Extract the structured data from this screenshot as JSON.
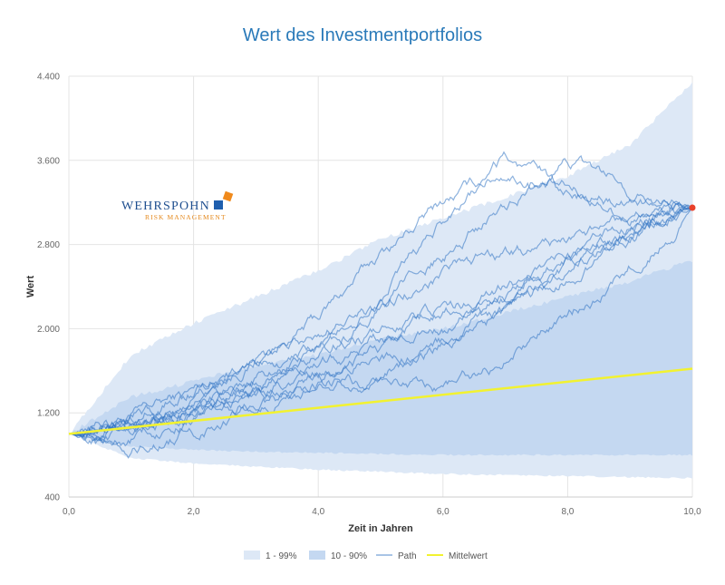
{
  "chart_data": {
    "type": "area",
    "title": "Wert des Investmentportfolios",
    "xlabel": "Zeit in Jahren",
    "ylabel": "Wert",
    "xlim": [
      0,
      10
    ],
    "ylim": [
      400,
      4400
    ],
    "x_ticks": [
      0,
      2,
      4,
      6,
      8,
      10
    ],
    "x_tick_labels": [
      "0,0",
      "2,0",
      "4,0",
      "6,0",
      "8,0",
      "10,0"
    ],
    "y_ticks": [
      400,
      1200,
      2000,
      2800,
      3600,
      4400
    ],
    "y_tick_labels": [
      "400",
      "1.200",
      "2.000",
      "2.800",
      "3.600",
      "4.400"
    ],
    "grid": true,
    "legend_position": "bottom-center",
    "series": [
      {
        "name": "1 - 99%",
        "kind": "band",
        "color": "#dde8f6",
        "x": [
          0,
          1,
          2,
          3,
          4,
          5,
          6,
          7,
          8,
          9,
          10
        ],
        "lower": [
          1000,
          770,
          720,
          690,
          660,
          640,
          620,
          610,
          600,
          590,
          580
        ],
        "upper": [
          1000,
          1750,
          2050,
          2300,
          2550,
          2850,
          3050,
          3250,
          3450,
          3750,
          4350
        ]
      },
      {
        "name": "10 - 90%",
        "kind": "band",
        "color": "#c4d8f1",
        "x": [
          0,
          1,
          2,
          3,
          4,
          5,
          6,
          7,
          8,
          9,
          10
        ],
        "lower": [
          1000,
          880,
          850,
          830,
          820,
          810,
          800,
          800,
          800,
          800,
          800
        ],
        "upper": [
          1000,
          1350,
          1500,
          1650,
          1750,
          1900,
          2000,
          2150,
          2300,
          2450,
          2650
        ]
      },
      {
        "name": "Path",
        "kind": "paths",
        "color": "#2f72c2",
        "x": [
          0,
          1,
          2,
          3,
          4,
          5,
          6,
          7,
          8,
          9,
          10
        ],
        "paths": [
          [
            1000,
            1150,
            1400,
            1700,
            2100,
            2700,
            3200,
            3500,
            3300,
            3100,
            3150
          ],
          [
            1000,
            1100,
            1300,
            1500,
            1800,
            2300,
            3000,
            3550,
            3300,
            3200,
            3150
          ],
          [
            1000,
            1050,
            1250,
            1400,
            1750,
            2200,
            2700,
            3200,
            3600,
            3350,
            3150
          ],
          [
            1000,
            1200,
            1450,
            1650,
            1950,
            2200,
            2500,
            2700,
            2800,
            3000,
            3150
          ],
          [
            1000,
            900,
            1050,
            1250,
            1500,
            1800,
            2000,
            2300,
            2600,
            2900,
            3150
          ],
          [
            1000,
            1050,
            1150,
            1300,
            1450,
            1600,
            1850,
            2150,
            2500,
            2850,
            3150
          ],
          [
            1000,
            1100,
            1300,
            1500,
            1600,
            1750,
            1900,
            2200,
            2550,
            2900,
            3150
          ],
          [
            1000,
            950,
            1150,
            1350,
            1550,
            1500,
            1350,
            1700,
            2100,
            2600,
            3150
          ],
          [
            1000,
            1150,
            1350,
            1600,
            1800,
            2000,
            2200,
            2400,
            2650,
            2900,
            3150
          ],
          [
            1000,
            1050,
            1200,
            1400,
            1650,
            1900,
            2150,
            2350,
            2700,
            2950,
            3150
          ]
        ]
      },
      {
        "name": "Mittelwert",
        "kind": "line",
        "color": "#f2f230",
        "x": [
          0,
          10
        ],
        "values": [
          1000,
          1620
        ]
      }
    ],
    "end_marker": {
      "x": 10,
      "y": 3150,
      "color": "#e8402a"
    }
  },
  "logo": {
    "name": "WEHRSPOHN",
    "tagline": "RISK MANAGEMENT"
  }
}
